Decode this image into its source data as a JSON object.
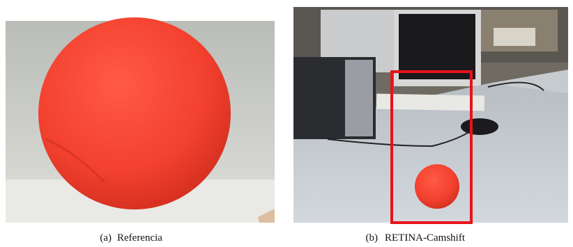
{
  "figures": [
    {
      "label": "(a)",
      "caption": "Referencia"
    },
    {
      "label": "(b)",
      "caption": "RETINA-Camshift"
    }
  ]
}
